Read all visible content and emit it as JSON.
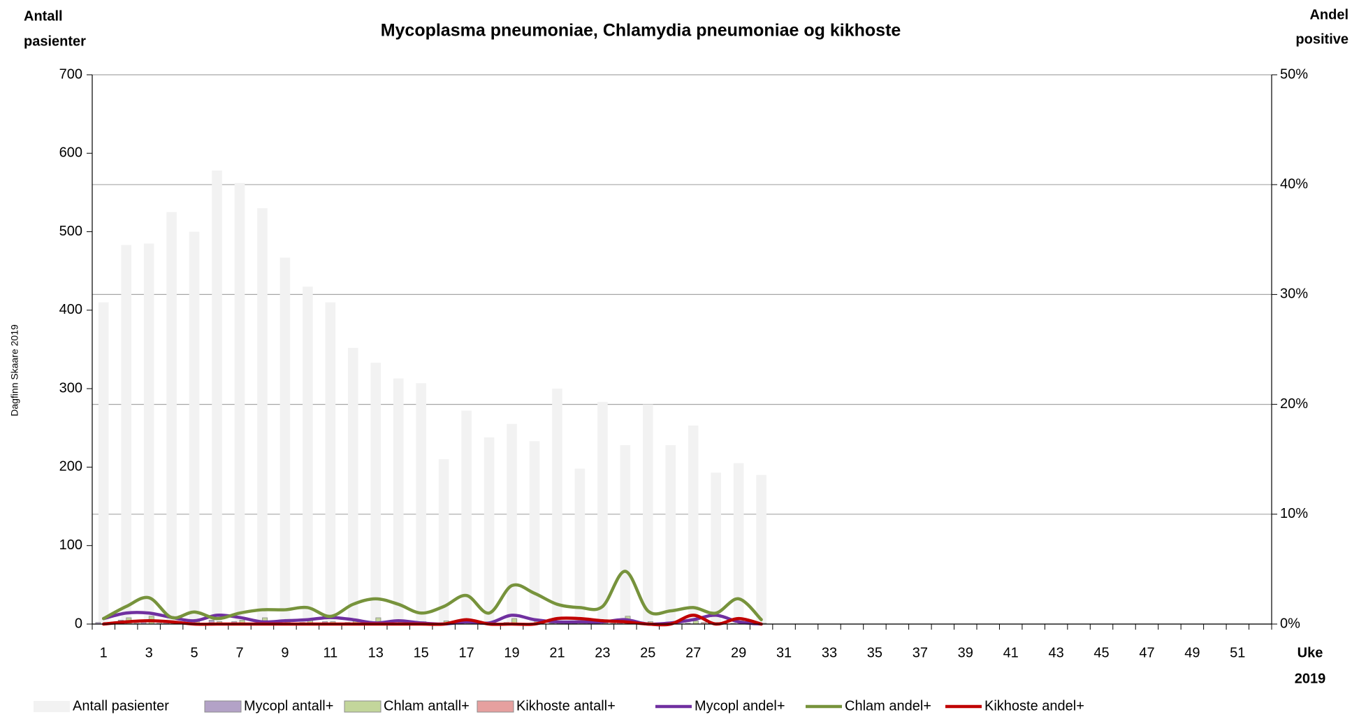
{
  "chart_data": {
    "type": "bar",
    "title": "Mycoplasma pneumoniae, Chlamydia pneumoniae og kikhoste",
    "y_label": [
      "Antall",
      "pasienter"
    ],
    "y2_label": [
      "Andel",
      "positive"
    ],
    "x_label": [
      "Uke",
      "2019"
    ],
    "watermark": "Dagfinn Skaare 2019",
    "categories": [
      1,
      null,
      3,
      null,
      5,
      null,
      7,
      null,
      9,
      null,
      11,
      null,
      13,
      null,
      15,
      null,
      17,
      null,
      19,
      null,
      21,
      null,
      23,
      null,
      25,
      null,
      27,
      null,
      29,
      null,
      31,
      null,
      33,
      null,
      35,
      null,
      37,
      null,
      39,
      null,
      41,
      null,
      43,
      null,
      45,
      null,
      47,
      null,
      49,
      null,
      51,
      null
    ],
    "ylim": [
      0,
      700
    ],
    "yticks": [
      0,
      100,
      200,
      300,
      400,
      500,
      600,
      700
    ],
    "y2lim": [
      0,
      50
    ],
    "y2ticks": [
      {
        "value": 0,
        "label": "0%"
      },
      {
        "value": 10,
        "label": "10%"
      },
      {
        "value": 20,
        "label": "20%"
      },
      {
        "value": 30,
        "label": "30%"
      },
      {
        "value": 40,
        "label": "40%"
      },
      {
        "value": 50,
        "label": "50%"
      }
    ],
    "grid": true,
    "legend": "bottom",
    "series": [
      {
        "name": "Antall pasienter",
        "type": "bar",
        "color": "#f2f2f2",
        "values": [
          410,
          483,
          485,
          525,
          500,
          578,
          562,
          530,
          467,
          430,
          410,
          352,
          333,
          313,
          307,
          210,
          272,
          238,
          255,
          233,
          300,
          198,
          283,
          228,
          280,
          228,
          253,
          193,
          205,
          190,
          null,
          null,
          null,
          null,
          null,
          null,
          null,
          null,
          null,
          null,
          null,
          null,
          null,
          null,
          null,
          null,
          null,
          null,
          null,
          null,
          null,
          null
        ]
      },
      {
        "name": "Mycopl antall+",
        "type": "bar",
        "color": "#b3a2c7",
        "values": [
          2,
          5,
          5,
          3,
          2,
          5,
          3,
          1,
          2,
          2,
          3,
          2,
          1,
          1,
          1,
          0,
          1,
          0,
          2,
          1,
          1,
          1,
          1,
          3,
          0,
          0,
          1,
          2,
          1,
          0,
          null,
          null,
          null,
          null,
          null,
          null,
          null,
          null,
          null,
          null,
          null,
          null,
          null,
          null,
          null,
          null,
          null,
          null,
          null,
          null,
          null,
          null
        ]
      },
      {
        "name": "Chlam antall+",
        "type": "bar",
        "color": "#c3d69b",
        "values": [
          2,
          8,
          10,
          3,
          5,
          3,
          5,
          8,
          6,
          6,
          3,
          6,
          8,
          5,
          3,
          4,
          6,
          3,
          7,
          5,
          4,
          3,
          4,
          10,
          3,
          3,
          4,
          2,
          4,
          1,
          null,
          null,
          null,
          null,
          null,
          null,
          null,
          null,
          null,
          null,
          null,
          null,
          null,
          null,
          null,
          null,
          null,
          null,
          null,
          null,
          null,
          null
        ]
      },
      {
        "name": "Kikhoste antall+",
        "type": "bar",
        "color": "#e6a09f",
        "values": [
          0,
          1,
          1,
          1,
          0,
          0,
          0,
          0,
          0,
          0,
          0,
          0,
          0,
          0,
          0,
          0,
          1,
          0,
          0,
          0,
          1,
          1,
          1,
          1,
          0,
          0,
          2,
          0,
          1,
          0,
          null,
          null,
          null,
          null,
          null,
          null,
          null,
          null,
          null,
          null,
          null,
          null,
          null,
          null,
          null,
          null,
          null,
          null,
          null,
          null,
          null,
          null
        ]
      },
      {
        "name": "Mycopl andel+",
        "type": "line",
        "axis": "y2",
        "color": "#7030a0",
        "values": [
          0.5,
          1.0,
          1.0,
          0.6,
          0.3,
          0.8,
          0.6,
          0.2,
          0.3,
          0.4,
          0.6,
          0.4,
          0.1,
          0.3,
          0.1,
          0,
          0.2,
          0.1,
          0.8,
          0.4,
          0.2,
          0.2,
          0.2,
          0.4,
          0,
          0.1,
          0.4,
          0.8,
          0.2,
          0,
          null,
          null,
          null,
          null,
          null,
          null,
          null,
          null,
          null,
          null,
          null,
          null,
          null,
          null,
          null,
          null,
          null,
          null,
          null,
          null,
          null,
          null
        ]
      },
      {
        "name": "Chlam andel+",
        "type": "line",
        "axis": "y2",
        "color": "#77933c",
        "values": [
          0.5,
          1.6,
          2.4,
          0.6,
          1.1,
          0.5,
          1.0,
          1.3,
          1.3,
          1.5,
          0.7,
          1.8,
          2.3,
          1.8,
          1.0,
          1.6,
          2.6,
          1.0,
          3.5,
          2.8,
          1.8,
          1.5,
          1.6,
          4.8,
          1.2,
          1.2,
          1.5,
          1.0,
          2.3,
          0.4,
          null,
          null,
          null,
          null,
          null,
          null,
          null,
          null,
          null,
          null,
          null,
          null,
          null,
          null,
          null,
          null,
          null,
          null,
          null,
          null,
          null,
          null
        ]
      },
      {
        "name": "Kikhoste andel+",
        "type": "line",
        "axis": "y2",
        "color": "#c00000",
        "values": [
          0,
          0.2,
          0.3,
          0.2,
          0,
          0,
          0,
          0,
          0,
          0,
          0,
          0,
          0,
          0,
          0,
          0,
          0.4,
          0,
          0,
          0,
          0.5,
          0.5,
          0.3,
          0.2,
          0,
          0,
          0.8,
          0,
          0.5,
          0,
          null,
          null,
          null,
          null,
          null,
          null,
          null,
          null,
          null,
          null,
          null,
          null,
          null,
          null,
          null,
          null,
          null,
          null,
          null,
          null,
          null,
          null
        ]
      }
    ]
  }
}
